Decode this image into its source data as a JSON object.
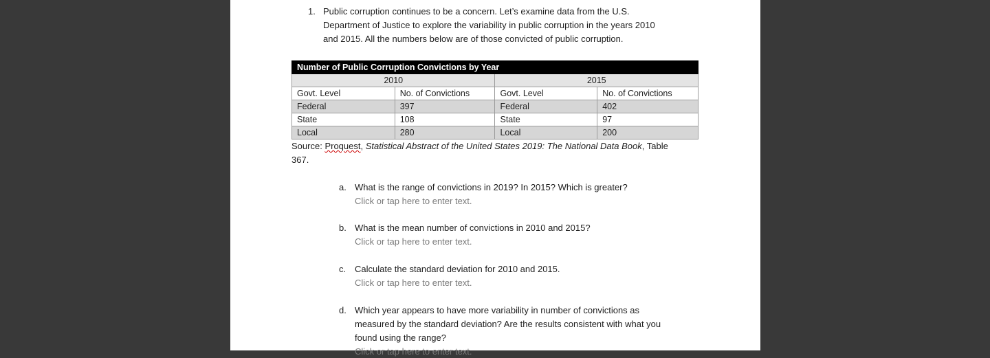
{
  "intro": {
    "number": "1.",
    "lines": [
      "Public corruption continues to be a concern. Let’s examine data from the U.S.",
      "Department of Justice to explore the variability in public corruption in the years 2010",
      "and 2015. All the numbers below are of those convicted of public corruption."
    ]
  },
  "table": {
    "title": "Number of Public Corruption Convictions by Year",
    "years": [
      "2010",
      "2015"
    ],
    "header": [
      "Govt. Level",
      "No. of Convictions",
      "Govt. Level",
      "No. of Convictions"
    ],
    "rows": [
      [
        "Federal",
        397,
        "Federal",
        402
      ],
      [
        "State",
        108,
        "State",
        97
      ],
      [
        "Local",
        280,
        "Local",
        200
      ]
    ]
  },
  "source": {
    "label": "Source:",
    "publisher": "Proquest",
    "comma": ",",
    "title": "Statistical Abstract of the United States 2019: The National Data Book",
    "suffix_lines": [
      ", Table",
      "367."
    ]
  },
  "questions": [
    {
      "letter": "a.",
      "lines": [
        "What is the range of convictions in 2019? In 2015? Which is greater?"
      ],
      "placeholder": "Click or tap here to enter text."
    },
    {
      "letter": "b.",
      "lines": [
        "What is the mean number of convictions in 2010 and 2015?"
      ],
      "placeholder": "Click or tap here to enter text."
    },
    {
      "letter": "c.",
      "lines": [
        "Calculate the standard deviation for 2010 and 2015."
      ],
      "placeholder": "Click or tap here to enter text."
    },
    {
      "letter": "d.",
      "lines": [
        "Which year appears to have more variability in number of convictions as",
        "measured by the standard deviation? Are the results consistent with what you",
        "found using the range?"
      ],
      "placeholder": "Click or tap here to enter text."
    }
  ]
}
